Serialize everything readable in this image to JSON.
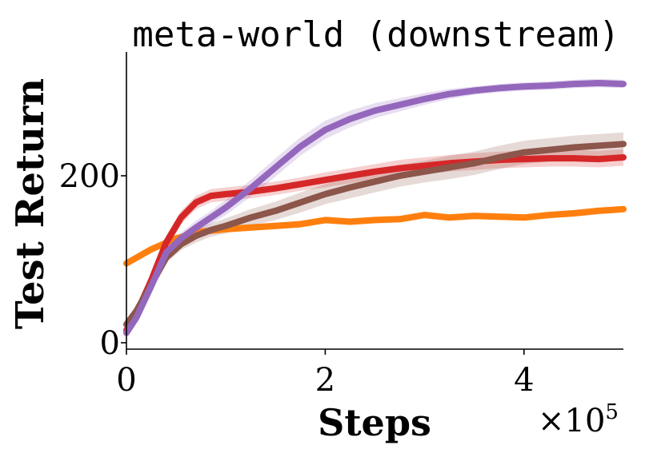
{
  "chart_data": {
    "type": "line",
    "title": "meta-world (downstream)",
    "xlabel": "Steps",
    "ylabel": "Test Return",
    "x_multiplier": "×10",
    "x_multiplier_exp": "5",
    "xlim": [
      0,
      5
    ],
    "ylim": [
      -5,
      345
    ],
    "xticks": [
      0,
      2,
      4
    ],
    "xtick_labels": [
      "0",
      "2",
      "4"
    ],
    "yticks": [
      0,
      200
    ],
    "ytick_labels": [
      "0",
      "200"
    ],
    "grid": false,
    "legend": "none",
    "series": [
      {
        "color": "#ff7f0e",
        "x": [
          0,
          0.25,
          0.5,
          0.75,
          1.0,
          1.25,
          1.5,
          1.75,
          2.0,
          2.25,
          2.5,
          2.75,
          3.0,
          3.25,
          3.5,
          3.75,
          4.0,
          4.25,
          4.5,
          4.75,
          5.0
        ],
        "y": [
          95,
          112,
          125,
          133,
          136,
          138,
          140,
          142,
          147,
          145,
          147,
          148,
          153,
          150,
          152,
          151,
          150,
          153,
          155,
          158,
          160
        ],
        "band": [
          4,
          4,
          4,
          4,
          4,
          4,
          4,
          4,
          4,
          4,
          4,
          4,
          4,
          4,
          4,
          4,
          4,
          4,
          4,
          4,
          4
        ]
      },
      {
        "color": "#d62728",
        "x": [
          0,
          0.1,
          0.25,
          0.4,
          0.55,
          0.7,
          0.85,
          1.0,
          1.25,
          1.5,
          1.75,
          2.0,
          2.25,
          2.5,
          2.75,
          3.0,
          3.25,
          3.5,
          3.75,
          4.0,
          4.25,
          4.5,
          4.75,
          5.0
        ],
        "y": [
          15,
          35,
          75,
          120,
          150,
          168,
          176,
          178,
          181,
          185,
          190,
          195,
          200,
          205,
          209,
          212,
          215,
          217,
          219,
          220,
          221,
          221,
          220,
          222
        ],
        "band": [
          4,
          5,
          6,
          8,
          8,
          8,
          8,
          8,
          8,
          8,
          8,
          9,
          9,
          9,
          10,
          10,
          10,
          10,
          10,
          10,
          10,
          10,
          10,
          10
        ]
      },
      {
        "color": "#8c564b",
        "x": [
          0,
          0.1,
          0.25,
          0.4,
          0.55,
          0.7,
          0.85,
          1.0,
          1.25,
          1.5,
          1.75,
          2.0,
          2.25,
          2.5,
          2.75,
          3.0,
          3.25,
          3.5,
          3.75,
          4.0,
          4.25,
          4.5,
          4.75,
          5.0
        ],
        "y": [
          22,
          38,
          70,
          102,
          118,
          128,
          135,
          140,
          150,
          158,
          168,
          178,
          186,
          193,
          200,
          205,
          210,
          215,
          222,
          228,
          231,
          234,
          236,
          238
        ],
        "band": [
          4,
          5,
          6,
          6,
          7,
          8,
          8,
          9,
          10,
          11,
          12,
          12,
          13,
          13,
          13,
          13,
          14,
          14,
          14,
          14,
          14,
          14,
          14,
          14
        ]
      },
      {
        "color": "#9467bd",
        "x": [
          0,
          0.1,
          0.25,
          0.4,
          0.55,
          0.7,
          0.85,
          1.0,
          1.25,
          1.5,
          1.75,
          2.0,
          2.25,
          2.5,
          2.75,
          3.0,
          3.25,
          3.5,
          3.75,
          4.0,
          4.25,
          4.5,
          4.75,
          5.0
        ],
        "y": [
          12,
          30,
          68,
          108,
          125,
          138,
          150,
          162,
          185,
          210,
          235,
          255,
          268,
          278,
          285,
          292,
          298,
          302,
          305,
          307,
          308,
          310,
          311,
          310
        ],
        "band": [
          4,
          5,
          6,
          7,
          7,
          8,
          8,
          9,
          10,
          11,
          11,
          11,
          10,
          9,
          8,
          7,
          6,
          5,
          5,
          5,
          5,
          5,
          5,
          5
        ]
      }
    ]
  }
}
